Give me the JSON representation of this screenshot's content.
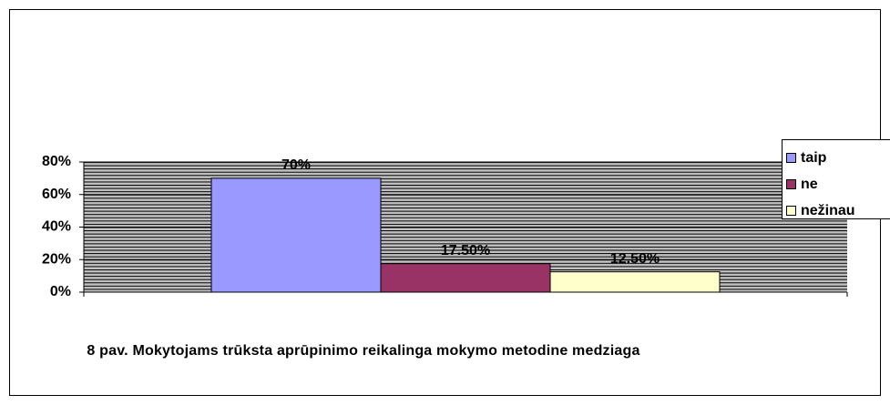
{
  "chart_data": {
    "type": "bar",
    "caption": "8 pav. Mokytojams trūksta aprūpinimo reikalinga mokymo metodine medziaga",
    "categories": [
      null
    ],
    "series": [
      {
        "name": "taip",
        "color": "#9999ff",
        "values": [
          70
        ],
        "value_labels": [
          "70%"
        ]
      },
      {
        "name": "ne",
        "color": "#993366",
        "values": [
          17.5
        ],
        "value_labels": [
          "17.50%"
        ]
      },
      {
        "name": "nežinau",
        "color": "#ffffcc",
        "values": [
          12.5
        ],
        "value_labels": [
          "12.50%"
        ]
      }
    ],
    "ylim": [
      0,
      80
    ],
    "yticks": [
      {
        "value": 0,
        "label": "0%"
      },
      {
        "value": 20,
        "label": "20%"
      },
      {
        "value": 40,
        "label": "40%"
      },
      {
        "value": 60,
        "label": "60%"
      },
      {
        "value": 80,
        "label": "80%"
      }
    ],
    "grid": true,
    "legend": "right"
  }
}
